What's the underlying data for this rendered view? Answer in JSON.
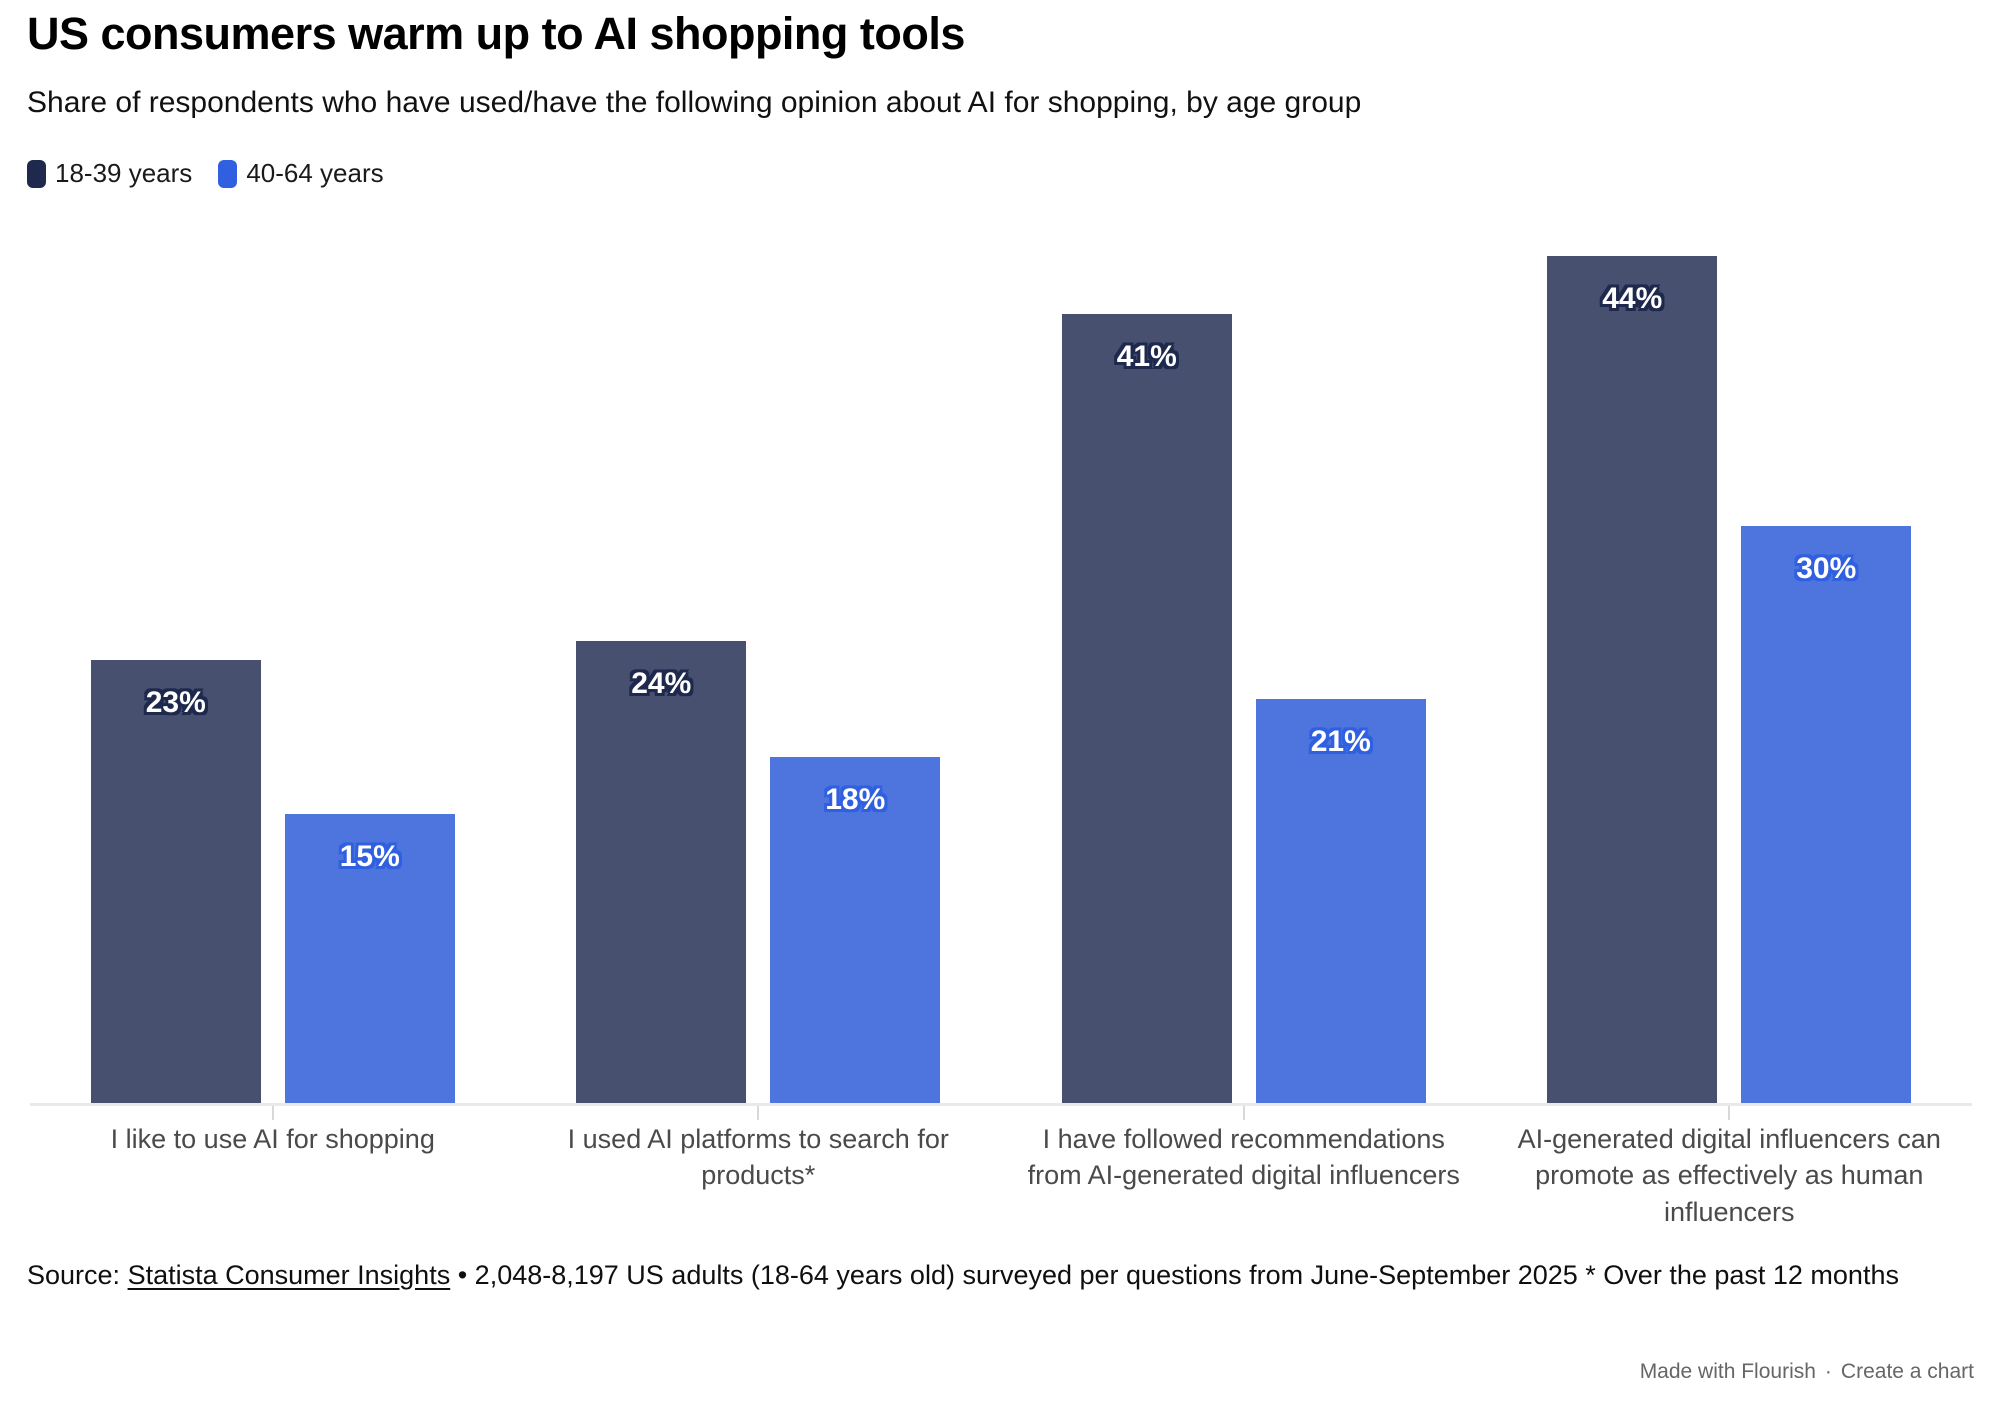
{
  "header": {
    "title": "US consumers warm up to AI shopping tools",
    "subtitle": "Share of respondents who have used/have the following opinion about AI for shopping, by age group"
  },
  "chart_data": {
    "type": "bar",
    "categories": [
      "I like to use AI for shopping",
      "I used AI platforms to search for products*",
      "I have followed recommendations from AI-generated digital influencers",
      "AI-generated digital influencers can promote as effectively as human influencers"
    ],
    "series": [
      {
        "name": "18-39 years",
        "color": "#1e294d",
        "bar_color": "#47506f",
        "values": [
          23,
          24,
          41,
          44
        ],
        "labels": [
          "23%",
          "24%",
          "41%",
          "44%"
        ]
      },
      {
        "name": "40-64 years",
        "color": "#3060e0",
        "bar_color": "#4e74de",
        "values": [
          15,
          18,
          21,
          30
        ],
        "labels": [
          "15%",
          "18%",
          "21%",
          "30%"
        ]
      }
    ],
    "value_suffix": "%",
    "ylim": [
      0,
      46
    ],
    "grid": false,
    "y_axis_visible": false,
    "legend_position": "top-left"
  },
  "source": {
    "prefix": "Source: ",
    "link_text": "Statista Consumer Insights",
    "rest": " • 2,048-8,197 US adults (18-64 years old) surveyed per questions from June-September 2025 * Over the past 12 months"
  },
  "footer": {
    "made_with_label": "Made with Flourish",
    "separator": "·",
    "create_label": "Create a chart"
  }
}
